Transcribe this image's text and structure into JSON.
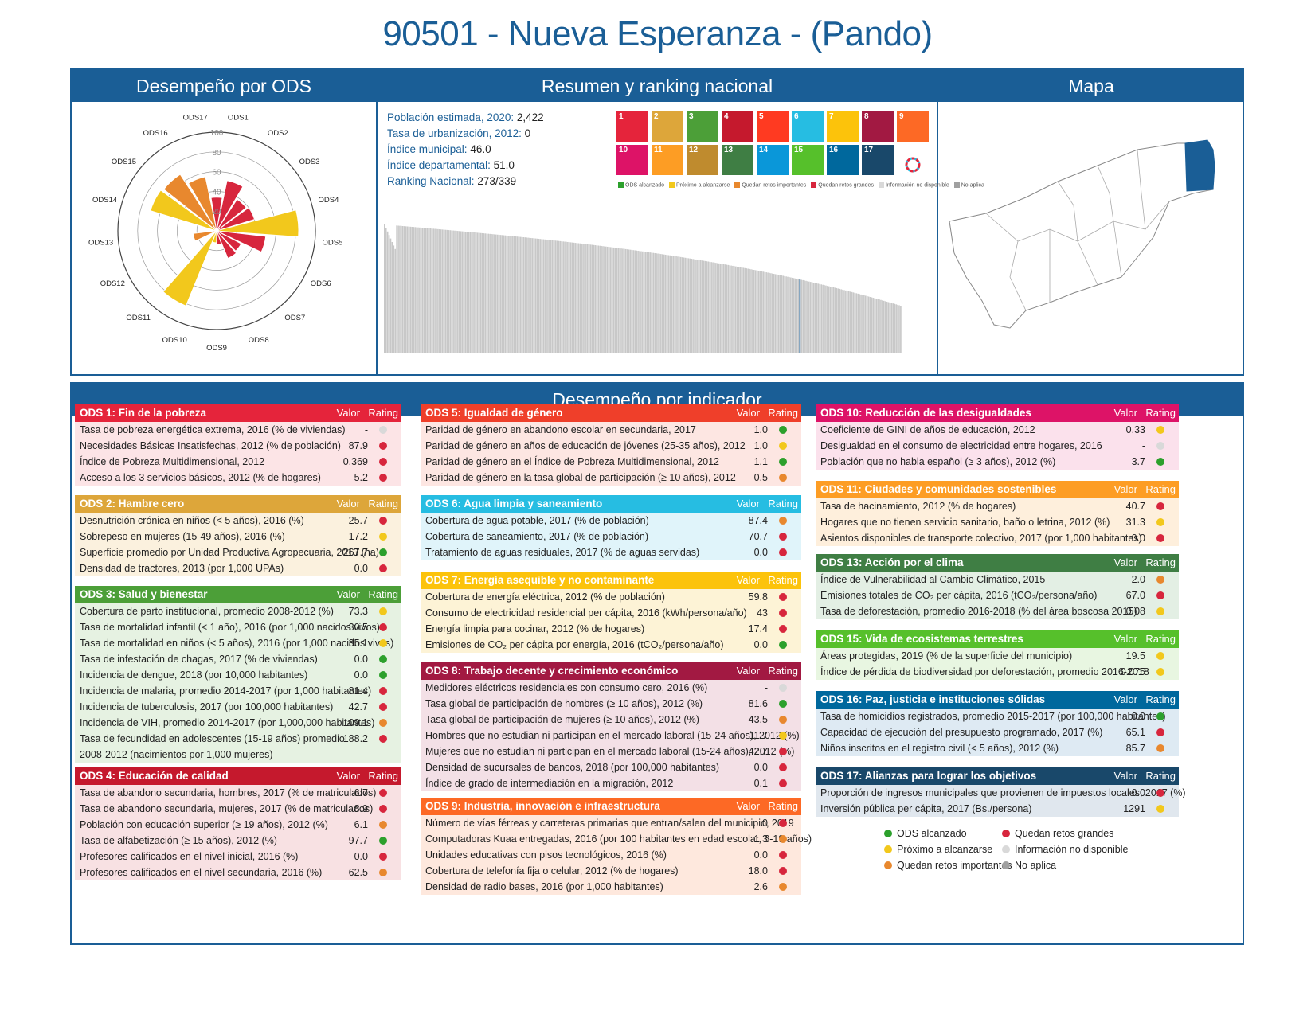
{
  "title": "90501 - Nueva Esperanza - (Pando)",
  "colors": {
    "blue": "#1a5e96",
    "green": "#2ca02c",
    "yellow": "#f2c81c",
    "orange": "#e8882e",
    "red": "#d7263d",
    "lightgray": "#d9d9d9",
    "gray": "#a0a0a0"
  },
  "panels": {
    "desempeno_ods": "Desempeño por ODS",
    "resumen": "Resumen y ranking nacional",
    "mapa": "Mapa",
    "indicador": "Desempeño por indicador"
  },
  "stats": [
    {
      "k": "Población estimada, 2020:",
      "v": "2,422"
    },
    {
      "k": "Tasa de urbanización, 2012:",
      "v": "0"
    },
    {
      "k": "Índice municipal:",
      "v": "46.0"
    },
    {
      "k": "Índice departamental:",
      "v": "51.0"
    },
    {
      "k": "Ranking Nacional:",
      "v": "273/339"
    }
  ],
  "sdg_tiles": [
    {
      "n": "1",
      "color": "#e5243b"
    },
    {
      "n": "2",
      "color": "#dda63a"
    },
    {
      "n": "3",
      "color": "#4c9f38"
    },
    {
      "n": "4",
      "color": "#c5192d"
    },
    {
      "n": "5",
      "color": "#ff3a21"
    },
    {
      "n": "6",
      "color": "#26bde2"
    },
    {
      "n": "7",
      "color": "#fcc30b"
    },
    {
      "n": "8",
      "color": "#a21942"
    },
    {
      "n": "9",
      "color": "#fd6925"
    },
    {
      "n": "10",
      "color": "#dd1367"
    },
    {
      "n": "11",
      "color": "#fd9d24"
    },
    {
      "n": "12",
      "color": "#bf8b2e"
    },
    {
      "n": "13",
      "color": "#3f7e44"
    },
    {
      "n": "14",
      "color": "#0a97d9"
    },
    {
      "n": "15",
      "color": "#56c02b"
    },
    {
      "n": "16",
      "color": "#00689d"
    },
    {
      "n": "17",
      "color": "#19486a"
    },
    {
      "n": "",
      "color": "#ffffff"
    }
  ],
  "mini_legend": [
    {
      "label": "ODS alcanzado",
      "color": "#2ca02c"
    },
    {
      "label": "Próximo a alcanzarse",
      "color": "#f2c81c"
    },
    {
      "label": "Quedan retos importantes",
      "color": "#e8882e"
    },
    {
      "label": "Quedan retos grandes",
      "color": "#d7263d"
    },
    {
      "label": "Información no disponible",
      "color": "#d9d9d9"
    },
    {
      "label": "No aplica",
      "color": "#a0a0a0"
    }
  ],
  "chart_data": [
    {
      "type": "polar-bar",
      "categories": [
        "ODS1",
        "ODS2",
        "ODS3",
        "ODS4",
        "ODS5",
        "ODS6",
        "ODS7",
        "ODS8",
        "ODS9",
        "ODS10",
        "ODS11",
        "ODS12",
        "ODS13",
        "ODS14",
        "ODS15",
        "ODS16",
        "ODS17"
      ],
      "values": [
        34,
        52,
        38,
        40,
        83,
        50,
        28,
        30,
        14,
        12,
        82,
        0,
        24,
        0,
        70,
        68,
        56
      ],
      "ratings": [
        "red",
        "red",
        "red",
        "red",
        "yellow",
        "red",
        "red",
        "red",
        "red",
        "yellow",
        "yellow",
        "gray",
        "orange",
        "gray",
        "yellow",
        "orange",
        "orange"
      ],
      "ylim": [
        0,
        100
      ],
      "ticks": [
        "20",
        "40",
        "60",
        "80",
        "100"
      ]
    },
    {
      "type": "bar",
      "title": "",
      "n_bars": 339,
      "highlight_rank": 273,
      "ylim": [
        0,
        100
      ],
      "range": [
        81,
        30
      ]
    }
  ],
  "ods": [
    {
      "id": "ods1",
      "title": "ODS 1: Fin de la pobreza",
      "color": "#e5243b",
      "bg": "#fce4e6",
      "rows": [
        {
          "label": "Tasa de pobreza energética extrema, 2016 (% de viviendas)",
          "value": "-",
          "rating": "lightgray"
        },
        {
          "label": "Necesidades Básicas Insatisfechas, 2012 (% de población)",
          "value": "87.9",
          "rating": "red"
        },
        {
          "label": "Índice de Pobreza Multidimensional, 2012",
          "value": "0.369",
          "rating": "red"
        },
        {
          "label": "Acceso a los 3 servicios básicos, 2012 (% de hogares)",
          "value": "5.2",
          "rating": "red"
        }
      ]
    },
    {
      "id": "ods2",
      "title": "ODS 2: Hambre cero",
      "color": "#dda63a",
      "bg": "#fbf1de",
      "rows": [
        {
          "label": "Desnutrición crónica en niños (< 5 años), 2016 (%)",
          "value": "25.7",
          "rating": "red"
        },
        {
          "label": "Sobrepeso en mujeres (15-49 años), 2016 (%)",
          "value": "17.2",
          "rating": "yellow"
        },
        {
          "label": "Superficie promedio por Unidad Productiva Agropecuaria, 2013 (ha)",
          "value": "267.7",
          "rating": "green"
        },
        {
          "label": "Densidad de tractores, 2013 (por 1,000 UPAs)",
          "value": "0.0",
          "rating": "red"
        }
      ]
    },
    {
      "id": "ods3",
      "title": "ODS 3: Salud y bienestar",
      "color": "#4c9f38",
      "bg": "#e6f2e2",
      "rows": [
        {
          "label": "Cobertura de parto institucional, promedio 2008-2012 (%)",
          "value": "73.3",
          "rating": "yellow"
        },
        {
          "label": "Tasa de mortalidad infantil (< 1 año), 2016 (por 1,000 nacidos vivos)",
          "value": "30.5",
          "rating": "red"
        },
        {
          "label": "Tasa de mortalidad en niños (< 5 años), 2016 (por 1,000 nacidos vivos)",
          "value": "35.1",
          "rating": "yellow"
        },
        {
          "label": "Tasa de infestación de chagas, 2017 (% de viviendas)",
          "value": "0.0",
          "rating": "green"
        },
        {
          "label": "Incidencia de dengue, 2018 (por 10,000 habitantes)",
          "value": "0.0",
          "rating": "green"
        },
        {
          "label": "Incidencia de malaria, promedio 2014-2017 (por 1,000 habitantes)",
          "value": "81.4",
          "rating": "red"
        },
        {
          "label": "Incidencia de tuberculosis, 2017 (por 100,000 habitantes)",
          "value": "42.7",
          "rating": "red"
        },
        {
          "label": "Incidencia de VIH, promedio 2014-2017 (por 1,000,000 habitantes)",
          "value": "109.1",
          "rating": "orange"
        },
        {
          "label": "Tasa de fecundidad en adolescentes (15-19 años) promedio 2008-2012 (nacimientos por 1,000 mujeres)",
          "value": "188.2",
          "rating": "red",
          "wrap": true
        }
      ]
    },
    {
      "id": "ods4",
      "title": "ODS 4: Educación de calidad",
      "color": "#c5192d",
      "bg": "#f8e1e3",
      "rows": [
        {
          "label": "Tasa de abandono secundaria, hombres, 2017 (% de matriculados)",
          "value": "6.7",
          "rating": "red"
        },
        {
          "label": "Tasa de abandono secundaria, mujeres, 2017 (% de matriculados)",
          "value": "8.9",
          "rating": "red"
        },
        {
          "label": "Población con educación superior (≥ 19 años), 2012 (%)",
          "value": "6.1",
          "rating": "orange"
        },
        {
          "label": "Tasa de alfabetización (≥ 15 años), 2012 (%)",
          "value": "97.7",
          "rating": "green"
        },
        {
          "label": "Profesores calificados en el nivel inicial, 2016 (%)",
          "value": "0.0",
          "rating": "red"
        },
        {
          "label": "Profesores calificados en el nivel secundaria, 2016 (%)",
          "value": "62.5",
          "rating": "orange"
        }
      ]
    },
    {
      "id": "ods5",
      "title": "ODS 5: Igualdad de género",
      "color": "#ef3f2a",
      "bg": "#fde6e2",
      "rows": [
        {
          "label": "Paridad de género en abandono escolar en secundaria, 2017",
          "value": "1.0",
          "rating": "green"
        },
        {
          "label": "Paridad de género en años de educación de jóvenes (25-35 años), 2012",
          "value": "1.0",
          "rating": "yellow"
        },
        {
          "label": "Paridad de género en el Índice de Pobreza Multidimensional, 2012",
          "value": "1.1",
          "rating": "green"
        },
        {
          "label": "Paridad de género en la tasa global de participación (≥ 10 años), 2012",
          "value": "0.5",
          "rating": "orange"
        }
      ]
    },
    {
      "id": "ods6",
      "title": "ODS 6: Agua limpia y saneamiento",
      "color": "#26bde2",
      "bg": "#e0f4fa",
      "rows": [
        {
          "label": "Cobertura de agua potable, 2017 (% de población)",
          "value": "87.4",
          "rating": "orange"
        },
        {
          "label": "Cobertura de saneamiento, 2017 (% de población)",
          "value": "70.7",
          "rating": "red"
        },
        {
          "label": "Tratamiento de aguas residuales, 2017 (% de aguas servidas)",
          "value": "0.0",
          "rating": "red"
        }
      ]
    },
    {
      "id": "ods7",
      "title": "ODS 7: Energía asequible y no contaminante",
      "color": "#fcc30b",
      "bg": "#fdf3d6",
      "rows": [
        {
          "label": "Cobertura de energía eléctrica, 2012 (% de población)",
          "value": "59.8",
          "rating": "red"
        },
        {
          "label": "Consumo de electricidad residencial per cápita, 2016 (kWh/persona/año)",
          "value": "43",
          "rating": "red"
        },
        {
          "label": "Energía limpia para cocinar, 2012 (% de hogares)",
          "value": "17.4",
          "rating": "red"
        },
        {
          "label": "Emisiones de CO₂ per cápita por energía, 2016 (tCO₂/persona/año)",
          "value": "0.0",
          "rating": "green"
        }
      ]
    },
    {
      "id": "ods8",
      "title": "ODS 8: Trabajo decente y crecimiento económico",
      "color": "#a21942",
      "bg": "#f3e0e6",
      "rows": [
        {
          "label": "Medidores eléctricos residenciales con consumo cero, 2016 (%)",
          "value": "-",
          "rating": "lightgray"
        },
        {
          "label": "Tasa global de participación de hombres (≥ 10 años), 2012 (%)",
          "value": "81.6",
          "rating": "green"
        },
        {
          "label": "Tasa global de participación de mujeres (≥ 10 años), 2012 (%)",
          "value": "43.5",
          "rating": "orange"
        },
        {
          "label": "Hombres que no estudian ni participan en el mercado laboral (15-24 años), 2012 (%)",
          "value": "11.7",
          "rating": "yellow"
        },
        {
          "label": "Mujeres que no estudian ni participan en el mercado laboral (15-24 años), 2012 (%)",
          "value": "42.7",
          "rating": "red"
        },
        {
          "label": "Densidad de sucursales de bancos, 2018 (por 100,000 habitantes)",
          "value": "0.0",
          "rating": "red"
        },
        {
          "label": "Índice de grado de intermediación en la migración, 2012",
          "value": "0.1",
          "rating": "red"
        }
      ]
    },
    {
      "id": "ods9",
      "title": "ODS 9: Industria, innovación e infraestructura",
      "color": "#fd6925",
      "bg": "#fee8dd",
      "rows": [
        {
          "label": "Número de vías férreas y carreteras primarias que entran/salen del municipio, 2019",
          "value": "0",
          "rating": "red"
        },
        {
          "label": "Computadoras Kuaa entregadas, 2016 (por 100 habitantes en edad escolar, 6-19 años)",
          "value": "1.3",
          "rating": "orange"
        },
        {
          "label": "Unidades educativas con pisos tecnológicos, 2016 (%)",
          "value": "0.0",
          "rating": "red"
        },
        {
          "label": "Cobertura de telefonía fija o celular, 2012 (% de hogares)",
          "value": "18.0",
          "rating": "red"
        },
        {
          "label": "Densidad de radio bases, 2016 (por 1,000 habitantes)",
          "value": "2.6",
          "rating": "orange"
        }
      ]
    },
    {
      "id": "ods10",
      "title": "ODS 10: Reducción de las desigualdades",
      "color": "#dd1367",
      "bg": "#fbe1ec",
      "rows": [
        {
          "label": "Coeficiente de GINI de años de educación, 2012",
          "value": "0.33",
          "rating": "yellow"
        },
        {
          "label": "Desigualdad en el consumo de electricidad entre hogares, 2016",
          "value": "-",
          "rating": "lightgray"
        },
        {
          "label": "Población que no habla español (≥ 3 años), 2012 (%)",
          "value": "3.7",
          "rating": "green"
        }
      ]
    },
    {
      "id": "ods11",
      "title": "ODS 11: Ciudades y comunidades sostenibles",
      "color": "#fd9d24",
      "bg": "#feefdc",
      "rows": [
        {
          "label": "Tasa de hacinamiento, 2012 (% de hogares)",
          "value": "40.7",
          "rating": "red"
        },
        {
          "label": "Hogares que no tienen servicio sanitario, baño o letrina, 2012 (%)",
          "value": "31.3",
          "rating": "yellow"
        },
        {
          "label": "Asientos disponibles de transporte colectivo, 2017 (por 1,000 habitantes)",
          "value": "0.0",
          "rating": "red"
        }
      ]
    },
    {
      "id": "ods13",
      "title": "ODS 13: Acción por el clima",
      "color": "#3f7e44",
      "bg": "#e3efe4",
      "rows": [
        {
          "label": "Índice de Vulnerabilidad al Cambio Climático, 2015",
          "value": "2.0",
          "rating": "orange"
        },
        {
          "label": "Emisiones totales de CO₂ per cápita, 2016 (tCO₂/persona/año)",
          "value": "67.0",
          "rating": "red"
        },
        {
          "label": "Tasa de deforestación, promedio 2016-2018 (% del área boscosa 2015)",
          "value": "0.08",
          "rating": "yellow"
        }
      ]
    },
    {
      "id": "ods15",
      "title": "ODS 15: Vida de ecosistemas terrestres",
      "color": "#56c02b",
      "bg": "#e8f6e1",
      "rows": [
        {
          "label": "Áreas protegidas, 2019 (% de la superficie del municipio)",
          "value": "19.5",
          "rating": "yellow"
        },
        {
          "label": "Índice de pérdida de biodiversidad por deforestación, promedio 2016-2018",
          "value": "0.075",
          "rating": "yellow"
        }
      ]
    },
    {
      "id": "ods16",
      "title": "ODS 16: Paz, justicia e instituciones sólidas",
      "color": "#00689d",
      "bg": "#deeaf3",
      "rows": [
        {
          "label": "Tasa de homicidios registrados, promedio 2015-2017 (por 100,000 habitantes)",
          "value": "0.0",
          "rating": "green"
        },
        {
          "label": "Capacidad de ejecución del presupuesto programado, 2017 (%)",
          "value": "65.1",
          "rating": "red"
        },
        {
          "label": "Niños inscritos en el registro civil (< 5 años), 2012 (%)",
          "value": "85.7",
          "rating": "orange"
        }
      ]
    },
    {
      "id": "ods17",
      "title": "ODS 17: Alianzas para lograr los objetivos",
      "color": "#19486a",
      "bg": "#e0e7ee",
      "rows": [
        {
          "label": "Proporción de ingresos municipales que provienen de impuestos locales, 2017 (%)",
          "value": "0.0",
          "rating": "red"
        },
        {
          "label": "Inversión pública per cápita, 2017 (Bs./persona)",
          "value": "1291",
          "rating": "yellow"
        }
      ]
    }
  ],
  "table_headers": {
    "valor": "Valor",
    "rating": "Rating"
  },
  "legend": [
    {
      "label": "ODS alcanzado",
      "color": "#2ca02c"
    },
    {
      "label": "Próximo a alcanzarse",
      "color": "#f2c81c"
    },
    {
      "label": "Quedan retos importantes",
      "color": "#e8882e"
    },
    {
      "label": "Quedan retos grandes",
      "color": "#d7263d"
    },
    {
      "label": "Información no disponible",
      "color": "#d9d9d9"
    },
    {
      "label": "No aplica",
      "color": "#a0a0a0"
    }
  ]
}
